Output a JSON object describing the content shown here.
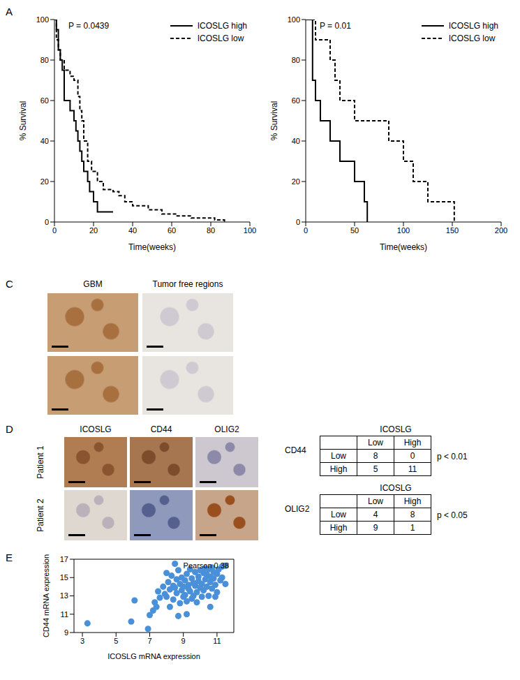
{
  "panel_labels": [
    "A",
    "C",
    "D",
    "E"
  ],
  "chart_data": [
    {
      "type": "step",
      "annotation": "P = 0.0439",
      "x_label": "Time(weeks)",
      "y_label": "% Survival",
      "xlim": [
        0,
        100
      ],
      "xticks": [
        0,
        20,
        40,
        60,
        80,
        100
      ],
      "ylim": [
        0,
        100
      ],
      "yticks": [
        0,
        20,
        40,
        60,
        80,
        100
      ],
      "legend": "upper right",
      "series": [
        {
          "name": "ICOSLG high",
          "color": "#000000",
          "line_style": "solid",
          "x": [
            0,
            1,
            2,
            3,
            4,
            5,
            8,
            10,
            11,
            12,
            13,
            14,
            15,
            17,
            18,
            20,
            22,
            30
          ],
          "values": [
            100,
            95,
            85,
            80,
            75,
            60,
            55,
            50,
            45,
            40,
            35,
            30,
            25,
            20,
            15,
            10,
            5,
            5
          ]
        },
        {
          "name": "ICOSLG low",
          "color": "#000000",
          "line_style": "dashed",
          "x": [
            0,
            1,
            2,
            3,
            5,
            8,
            10,
            12,
            13,
            14,
            15,
            17,
            19,
            22,
            25,
            30,
            33,
            36,
            40,
            48,
            55,
            62,
            70,
            82,
            87
          ],
          "values": [
            100,
            90,
            85,
            80,
            75,
            72,
            70,
            62,
            55,
            50,
            40,
            30,
            25,
            20,
            16,
            15,
            13,
            10,
            8,
            6,
            4,
            3,
            2,
            1,
            0
          ]
        }
      ]
    },
    {
      "type": "step",
      "annotation": "P = 0.01",
      "x_label": "Time(weeks)",
      "y_label": "% Survival",
      "xlim": [
        0,
        200
      ],
      "xticks": [
        0,
        50,
        100,
        150,
        200
      ],
      "ylim": [
        0,
        100
      ],
      "yticks": [
        0,
        20,
        40,
        60,
        80,
        100
      ],
      "legend": "upper right",
      "series": [
        {
          "name": "ICOSLG high",
          "color": "#000000",
          "line_style": "solid",
          "x": [
            0,
            7,
            10,
            15,
            25,
            35,
            50,
            60,
            63
          ],
          "values": [
            100,
            70,
            60,
            50,
            40,
            30,
            20,
            10,
            0
          ]
        },
        {
          "name": "ICOSLG low",
          "color": "#000000",
          "line_style": "dashed",
          "x": [
            0,
            10,
            25,
            30,
            35,
            50,
            85,
            100,
            110,
            125,
            152
          ],
          "values": [
            100,
            90,
            80,
            70,
            60,
            50,
            40,
            30,
            20,
            10,
            0
          ]
        }
      ]
    },
    {
      "type": "scatter",
      "annotation": "Pearson 0.38",
      "x_label": "ICOSLG mRNA expression",
      "y_label": "CD44 mRNA expression",
      "xlim": [
        2.5,
        12
      ],
      "xticks": [
        3,
        5,
        7,
        9,
        11
      ],
      "ylim": [
        9,
        17
      ],
      "yticks": [
        9,
        11,
        13,
        15,
        17
      ],
      "color": "#4a90d9",
      "x": [
        3.3,
        5.9,
        6.1,
        6.9,
        7.0,
        7.2,
        7.4,
        7.5,
        7.3,
        7.6,
        7.8,
        7.9,
        8.0,
        8.0,
        8.1,
        8.2,
        8.2,
        8.3,
        8.4,
        8.4,
        8.5,
        8.5,
        8.6,
        8.6,
        8.7,
        8.7,
        8.8,
        8.8,
        8.9,
        8.9,
        9.0,
        9.0,
        9.1,
        9.1,
        9.2,
        9.2,
        9.3,
        9.3,
        9.4,
        9.4,
        9.5,
        9.5,
        9.6,
        9.6,
        9.7,
        9.7,
        9.8,
        9.8,
        9.9,
        9.9,
        10.0,
        10.0,
        10.1,
        10.1,
        10.2,
        10.2,
        10.3,
        10.3,
        10.4,
        10.4,
        10.5,
        10.5,
        10.6,
        10.6,
        10.7,
        10.7,
        10.8,
        10.8,
        10.9,
        11.0,
        11.0,
        11.1,
        11.2,
        11.3,
        11.3,
        11.5,
        11.5,
        10.9,
        9.2,
        10.6
      ],
      "values": [
        10.0,
        10.2,
        12.5,
        9.4,
        10.9,
        11.4,
        11.8,
        13.5,
        12.3,
        12.8,
        14.0,
        13.2,
        15.5,
        12.9,
        14.5,
        13.7,
        11.8,
        15.2,
        14.1,
        12.6,
        13.9,
        16.5,
        14.8,
        13.3,
        10.8,
        15.8,
        14.3,
        12.2,
        13.6,
        15.0,
        14.0,
        12.9,
        14.7,
        13.1,
        15.4,
        12.4,
        14.2,
        13.8,
        15.9,
        13.5,
        14.9,
        12.7,
        14.4,
        13.0,
        15.6,
        14.1,
        13.4,
        12.3,
        15.1,
        14.6,
        13.9,
        15.8,
        14.3,
        12.9,
        15.5,
        13.6,
        14.8,
        16.0,
        14.0,
        15.3,
        13.0,
        15.9,
        14.5,
        15.1,
        13.8,
        16.1,
        14.9,
        15.6,
        14.2,
        15.4,
        13.4,
        15.9,
        14.7,
        16.2,
        15.0,
        16.3,
        14.3,
        12.9,
        11.0,
        11.8
      ]
    }
  ],
  "panel_c": {
    "columns": [
      "GBM",
      "Tumor free regions"
    ]
  },
  "panel_d": {
    "columns": [
      "ICOSLG",
      "CD44",
      "OLIG2"
    ],
    "rows": [
      "Patient 1",
      "Patient 2"
    ],
    "tables": [
      {
        "title": "ICOSLG",
        "row_title": "CD44",
        "columns": [
          "Low",
          "High"
        ],
        "rows": [
          [
            "Low",
            8,
            0
          ],
          [
            "High",
            5,
            11
          ]
        ],
        "p": "p < 0.01"
      },
      {
        "title": "ICOSLG",
        "row_title": "OLIG2",
        "columns": [
          "Low",
          "High"
        ],
        "rows": [
          [
            "Low",
            4,
            8
          ],
          [
            "High",
            9,
            1
          ]
        ],
        "p": "p < 0.05"
      }
    ]
  }
}
